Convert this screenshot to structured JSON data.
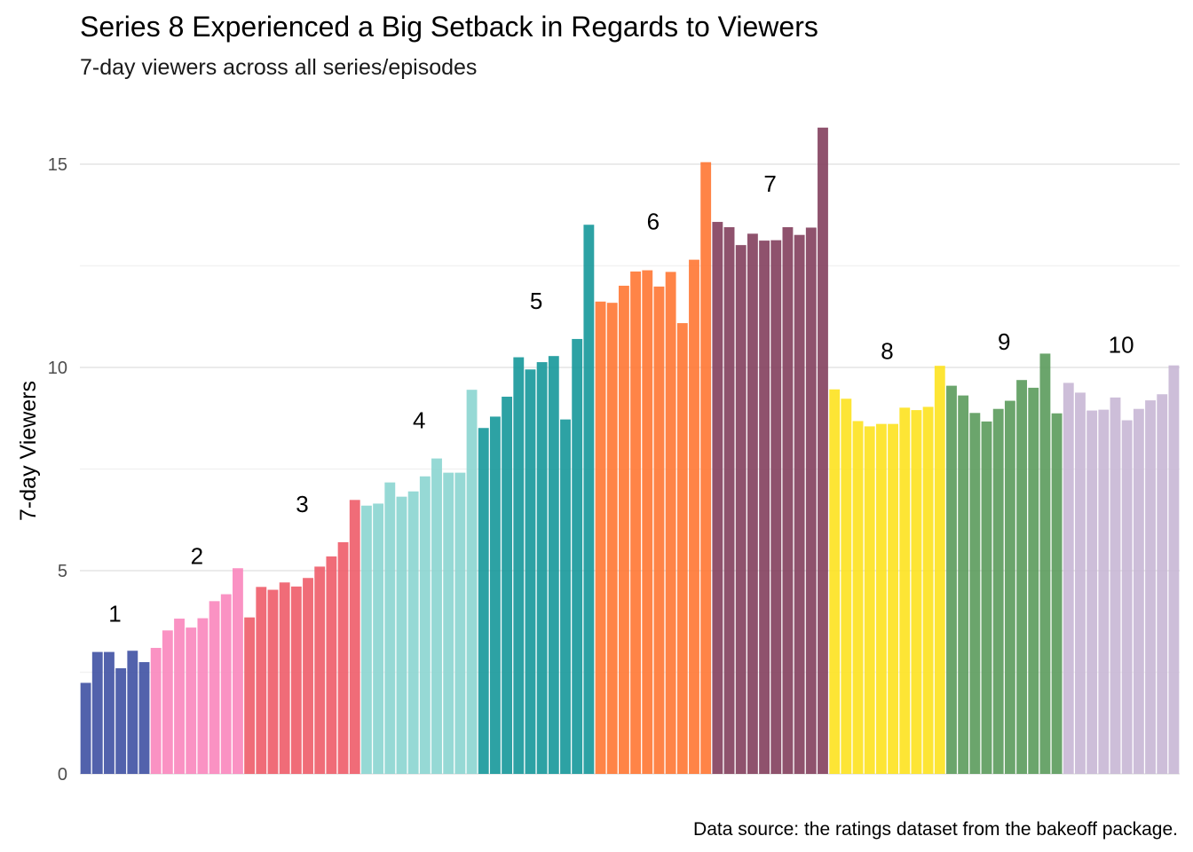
{
  "chart_data": {
    "type": "bar",
    "title": "Series 8 Experienced a Big Setback in Regards to Viewers",
    "subtitle": "7-day viewers across all series/episodes",
    "xlabel": "",
    "ylabel": "7-day Viewers",
    "caption": "Data source: the ratings dataset from the bakeoff package.",
    "ylim": [
      0,
      16
    ],
    "yticks": [
      0,
      5,
      10,
      15
    ],
    "grid": true,
    "legend": "none",
    "series": [
      {
        "label": "1",
        "color": "#3f51a3",
        "values": [
          2.24,
          3.0,
          3.0,
          2.6,
          3.03,
          2.75
        ]
      },
      {
        "label": "2",
        "color": "#f986bd",
        "values": [
          3.1,
          3.53,
          3.82,
          3.6,
          3.83,
          4.25,
          4.42,
          5.06
        ]
      },
      {
        "label": "3",
        "color": "#ee5c69",
        "values": [
          3.85,
          4.6,
          4.53,
          4.71,
          4.61,
          4.82,
          5.1,
          5.35,
          5.7,
          6.74
        ]
      },
      {
        "label": "4",
        "color": "#8bd5d0",
        "values": [
          6.6,
          6.65,
          7.17,
          6.82,
          6.95,
          7.32,
          7.76,
          7.41,
          7.41,
          9.45
        ]
      },
      {
        "label": "5",
        "color": "#16989a",
        "values": [
          8.51,
          8.79,
          9.28,
          10.25,
          9.95,
          10.13,
          10.28,
          8.72,
          10.7,
          13.51
        ]
      },
      {
        "label": "6",
        "color": "#ff7733",
        "values": [
          11.62,
          11.59,
          12.01,
          12.36,
          12.39,
          11.99,
          12.35,
          11.09,
          12.65,
          15.05
        ]
      },
      {
        "label": "7",
        "color": "#833f5d",
        "values": [
          13.58,
          13.45,
          13.01,
          13.29,
          13.12,
          13.13,
          13.45,
          13.26,
          13.44,
          15.9
        ]
      },
      {
        "label": "8",
        "color": "#fde21f",
        "values": [
          9.46,
          9.23,
          8.68,
          8.55,
          8.61,
          8.61,
          9.01,
          8.95,
          9.03,
          10.04
        ]
      },
      {
        "label": "9",
        "color": "#5b9b5c",
        "values": [
          9.55,
          9.31,
          8.88,
          8.67,
          8.98,
          9.18,
          9.69,
          9.5,
          10.34,
          8.87
        ]
      },
      {
        "label": "10",
        "color": "#c8b7d5",
        "values": [
          9.62,
          9.38,
          8.94,
          8.96,
          9.26,
          8.7,
          8.98,
          9.19,
          9.34,
          10.05
        ]
      }
    ]
  }
}
